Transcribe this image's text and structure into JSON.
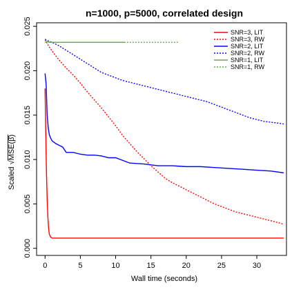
{
  "chart_data": {
    "type": "line",
    "title": "n=1000, p=5000, correlated design",
    "xlabel": "Wall time (seconds)",
    "ylabel_prefix": "Scaled ",
    "ylabel_math": "MSE(β̂)",
    "xlim": [
      -1.2,
      34.2
    ],
    "ylim": [
      -0.0008,
      0.0254
    ],
    "x_ticks": [
      0,
      5,
      10,
      15,
      20,
      25,
      30
    ],
    "x_tick_labels": [
      "0",
      "5",
      "10",
      "15",
      "20",
      "25",
      "30"
    ],
    "y_ticks": [
      0.0,
      0.005,
      0.01,
      0.015,
      0.02,
      0.025
    ],
    "y_tick_labels": [
      "0.000",
      "0.005",
      "0.010",
      "0.015",
      "0.020",
      "0.025"
    ],
    "grid": false,
    "legend_position": "top-right",
    "series": [
      {
        "name": "SNR=3, LIT",
        "color": "#ff0000",
        "dash": "solid",
        "x": [
          0.0,
          0.1,
          0.2,
          0.3,
          0.4,
          0.5,
          0.6,
          0.8,
          1.0,
          2.0,
          10.0,
          20.0,
          30.0,
          33.8
        ],
        "y": [
          0.018,
          0.013,
          0.0085,
          0.0055,
          0.0035,
          0.0023,
          0.0016,
          0.00125,
          0.00115,
          0.00115,
          0.00115,
          0.00115,
          0.00115,
          0.00115
        ]
      },
      {
        "name": "SNR=3, RW",
        "color": "#ff0000",
        "dash": "dotted",
        "x": [
          0.0,
          0.5,
          1.0,
          2.0,
          3.0,
          4.0,
          5.0,
          6.0,
          7.0,
          8.0,
          9.0,
          10.0,
          11.0,
          12.0,
          13.0,
          14.0,
          15.0,
          16.0,
          17.0,
          18.0,
          19.0,
          20.0,
          21.0,
          22.0,
          23.0,
          24.0,
          25.0,
          26.0,
          27.0,
          28.0,
          29.0,
          30.0,
          31.0,
          32.0,
          33.0,
          33.8
        ],
        "y": [
          0.0235,
          0.0228,
          0.0222,
          0.0212,
          0.0203,
          0.0195,
          0.0186,
          0.0176,
          0.0167,
          0.0158,
          0.0148,
          0.0138,
          0.0127,
          0.0118,
          0.0109,
          0.0101,
          0.0093,
          0.0086,
          0.0079,
          0.0074,
          0.007,
          0.0066,
          0.0062,
          0.0058,
          0.0054,
          0.005,
          0.0047,
          0.0044,
          0.0041,
          0.0039,
          0.0037,
          0.0035,
          0.0033,
          0.0031,
          0.0029,
          0.0027
        ]
      },
      {
        "name": "SNR=2, LIT",
        "color": "#0000ff",
        "dash": "solid",
        "x": [
          0.0,
          0.15,
          0.3,
          0.45,
          0.6,
          0.8,
          1.0,
          1.5,
          2.0,
          2.5,
          3.0,
          4.0,
          5.0,
          6.0,
          7.0,
          8.0,
          9.0,
          10.0,
          12.0,
          14.0,
          16.0,
          18.0,
          20.0,
          22.0,
          24.0,
          26.0,
          28.0,
          30.0,
          32.0,
          33.8
        ],
        "y": [
          0.0197,
          0.0185,
          0.015,
          0.0136,
          0.0128,
          0.0124,
          0.0121,
          0.0118,
          0.0116,
          0.0114,
          0.0108,
          0.0108,
          0.0106,
          0.0105,
          0.0105,
          0.0104,
          0.0102,
          0.0102,
          0.0096,
          0.0095,
          0.0093,
          0.0093,
          0.0092,
          0.0092,
          0.0091,
          0.009,
          0.0089,
          0.0088,
          0.0087,
          0.0085
        ]
      },
      {
        "name": "SNR=2, RW",
        "color": "#0000ff",
        "dash": "dotted",
        "x": [
          0.0,
          1.0,
          2.0,
          3.0,
          4.0,
          5.0,
          6.0,
          7.0,
          8.0,
          9.0,
          10.0,
          11.0,
          12.0,
          13.0,
          14.0,
          15.0,
          16.0,
          17.0,
          18.0,
          19.0,
          20.0,
          21.0,
          22.0,
          23.0,
          24.0,
          25.0,
          26.0,
          27.0,
          28.0,
          29.0,
          30.0,
          31.0,
          32.0,
          33.0,
          33.8
        ],
        "y": [
          0.0235,
          0.0232,
          0.0228,
          0.0223,
          0.0218,
          0.0213,
          0.0208,
          0.0203,
          0.0198,
          0.0195,
          0.0192,
          0.0189,
          0.0187,
          0.0185,
          0.0183,
          0.0181,
          0.0179,
          0.0177,
          0.0175,
          0.0173,
          0.0171,
          0.0169,
          0.0167,
          0.0165,
          0.0162,
          0.0159,
          0.0156,
          0.0153,
          0.015,
          0.0147,
          0.0145,
          0.0143,
          0.0142,
          0.0141,
          0.014
        ]
      },
      {
        "name": "SNR=1, LIT",
        "color": "#6aa84f",
        "dash": "solid",
        "x": [
          0.0,
          0.3,
          0.6,
          1.0,
          2.0,
          4.0,
          6.0,
          8.0,
          10.0,
          11.3
        ],
        "y": [
          0.0232,
          0.0233,
          0.0232,
          0.0232,
          0.0232,
          0.0232,
          0.0232,
          0.0232,
          0.0232,
          0.0232
        ]
      },
      {
        "name": "SNR=1, RW",
        "color": "#6aa84f",
        "dash": "dotted",
        "x": [
          0.0,
          0.3,
          0.6,
          1.0,
          2.0,
          5.0,
          8.0,
          11.0,
          14.0,
          17.0,
          18.9
        ],
        "y": [
          0.0236,
          0.0234,
          0.0233,
          0.0232,
          0.0232,
          0.0232,
          0.0232,
          0.0232,
          0.0232,
          0.0232,
          0.0232
        ]
      }
    ]
  }
}
